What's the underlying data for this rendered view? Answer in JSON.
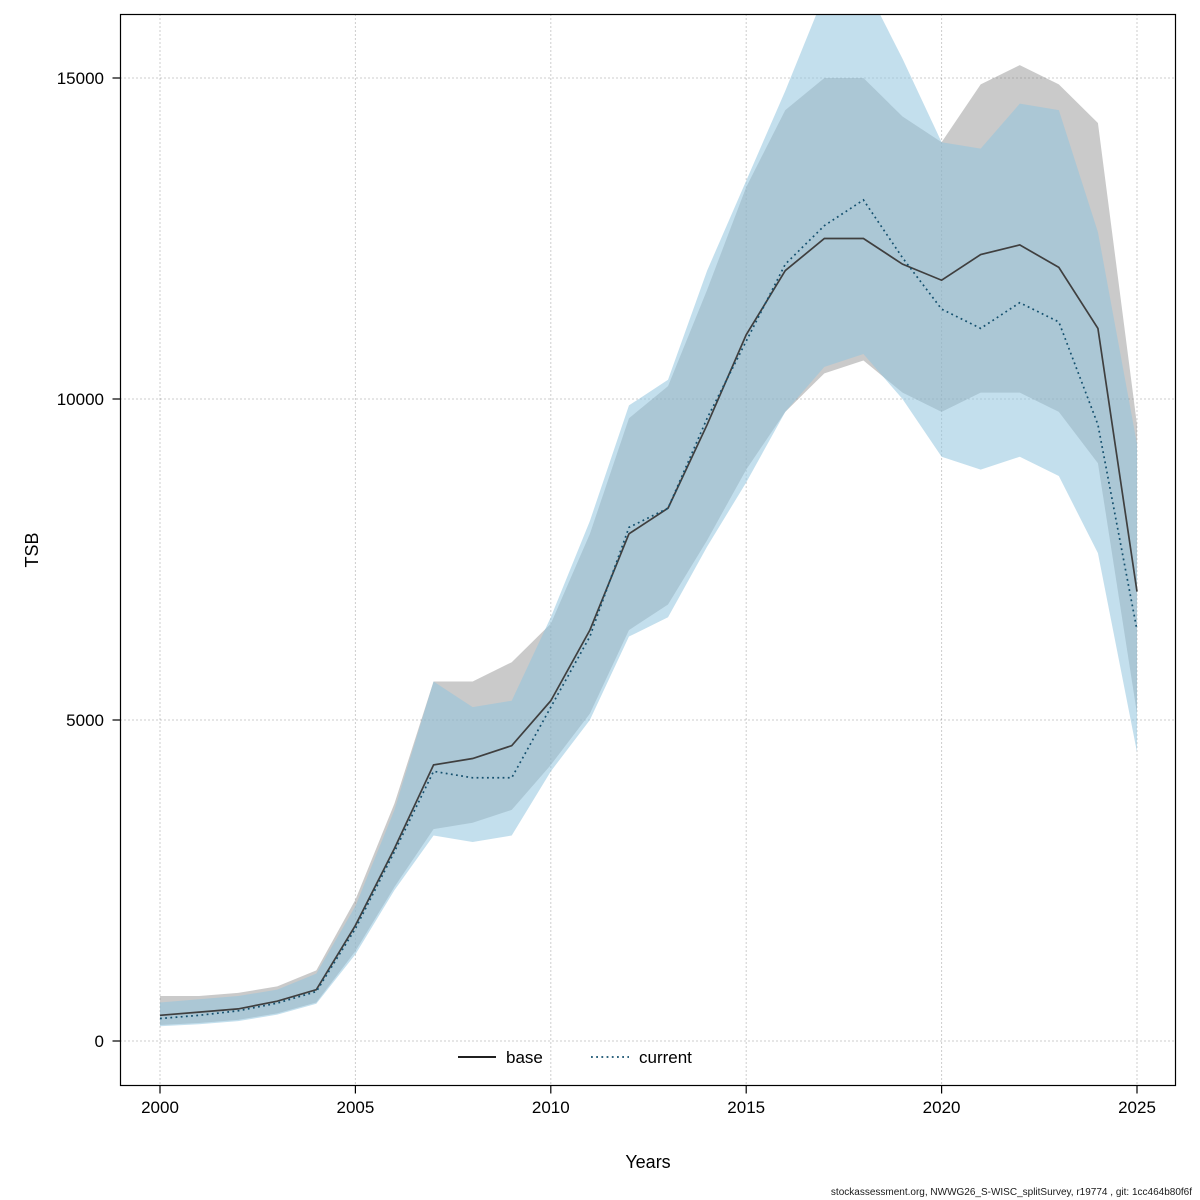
{
  "chart_data": {
    "type": "line",
    "title": "",
    "xlabel": "Years",
    "ylabel": "TSB",
    "footer": "stockassessment.org, NWWG26_S-WISC_splitSurvey, r19774 , git: 1cc464b80f6f",
    "x": [
      2000,
      2001,
      2002,
      2003,
      2004,
      2005,
      2006,
      2007,
      2008,
      2009,
      2010,
      2011,
      2012,
      2013,
      2014,
      2015,
      2016,
      2017,
      2018,
      2019,
      2020,
      2021,
      2022,
      2023,
      2024,
      2025
    ],
    "xticks": [
      2000,
      2005,
      2010,
      2015,
      2020,
      2025
    ],
    "yticks": [
      0,
      5000,
      10000,
      15000
    ],
    "xlim": [
      1999,
      2026
    ],
    "ylim": [
      -690,
      15980
    ],
    "grid": true,
    "legend_position": "bottom-inside",
    "series": [
      {
        "name": "base",
        "line_style": "solid",
        "color": "#3f3f3f",
        "band_color": "#808080",
        "band_opacity": 0.42,
        "values": [
          400,
          450,
          500,
          620,
          800,
          1800,
          3000,
          4300,
          4400,
          4600,
          5300,
          6400,
          7900,
          8300,
          9600,
          11000,
          12000,
          12500,
          12500,
          12100,
          11850,
          12250,
          12400,
          12050,
          11100,
          7000
        ],
        "lower": [
          250,
          280,
          330,
          430,
          600,
          1400,
          2400,
          3300,
          3400,
          3600,
          4300,
          5100,
          6400,
          6800,
          7800,
          8900,
          9800,
          10400,
          10600,
          10100,
          9800,
          10100,
          10100,
          9800,
          9000,
          5100
        ],
        "upper": [
          700,
          700,
          750,
          850,
          1100,
          2200,
          3700,
          5600,
          5600,
          5900,
          6500,
          7900,
          9700,
          10200,
          11700,
          13300,
          14500,
          15000,
          15000,
          14400,
          14000,
          14900,
          15200,
          14900,
          14300,
          9600
        ]
      },
      {
        "name": "current",
        "line_style": "dotted",
        "color": "#14506e",
        "band_color": "#92c5de",
        "band_opacity": 0.55,
        "values": [
          350,
          400,
          470,
          590,
          770,
          1750,
          2950,
          4200,
          4100,
          4100,
          5200,
          6300,
          8000,
          8300,
          9700,
          10900,
          12100,
          12700,
          13100,
          12200,
          11400,
          11100,
          11500,
          11200,
          9600,
          6400
        ],
        "lower": [
          230,
          260,
          310,
          410,
          580,
          1350,
          2350,
          3200,
          3100,
          3200,
          4200,
          5000,
          6300,
          6600,
          7700,
          8700,
          9800,
          10500,
          10700,
          10000,
          9100,
          8900,
          9100,
          8800,
          7600,
          4500
        ],
        "upper": [
          600,
          650,
          700,
          800,
          1050,
          2100,
          3600,
          5600,
          5200,
          5300,
          6600,
          8100,
          9900,
          10300,
          12000,
          13400,
          14800,
          16300,
          16500,
          15300,
          14000,
          13900,
          14600,
          14500,
          12600,
          9300
        ]
      }
    ]
  }
}
